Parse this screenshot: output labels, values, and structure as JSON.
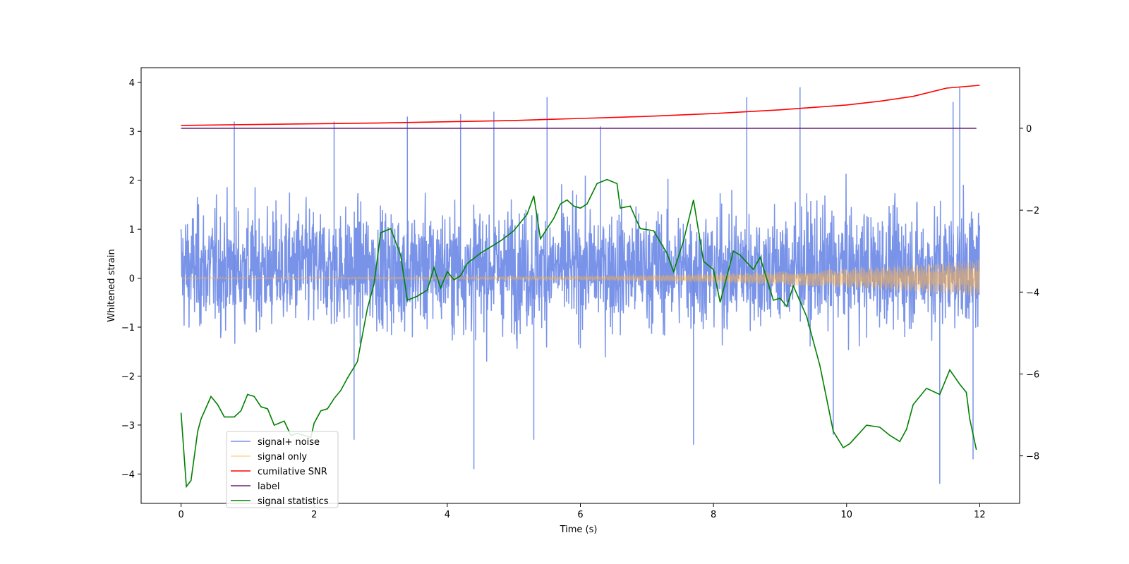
{
  "chart_data": {
    "type": "line",
    "title": "",
    "xlabel": "Time (s)",
    "ylabel": "Whitened strain",
    "xlim": [
      -0.6,
      12.6
    ],
    "ylim": [
      -4.6,
      4.3
    ],
    "y2lim": [
      -9.16,
      1.48
    ],
    "xticks": [
      0,
      2,
      4,
      6,
      8,
      10,
      12
    ],
    "yticks": [
      4,
      3,
      2,
      1,
      0,
      -1,
      -2,
      -3,
      -4
    ],
    "y2ticks": [
      0,
      -2,
      -4,
      -6,
      -8
    ],
    "tick_labels": {
      "x": [
        "0",
        "2",
        "4",
        "6",
        "8",
        "10",
        "12"
      ],
      "y": [
        "4",
        "3",
        "2",
        "1",
        "0",
        "−1",
        "−2",
        "−3",
        "−4"
      ],
      "y2": [
        "0",
        "−2",
        "−4",
        "−6",
        "−8"
      ]
    },
    "grid": false,
    "legend_position": "lower-left",
    "legend": [
      "signal+ noise",
      "signal only",
      "cumilative SNR",
      "label",
      "signal statistics"
    ],
    "series": [
      {
        "name": "signal+ noise",
        "axis": "left",
        "color": "#6a87e6",
        "kind": "noise",
        "t_range": [
          0,
          12
        ],
        "typical_amplitude": [
          -1.5,
          2.2
        ],
        "peaks": [
          {
            "t": 0.8,
            "v": 3.2
          },
          {
            "t": 2.3,
            "v": 3.2
          },
          {
            "t": 3.4,
            "v": 3.3
          },
          {
            "t": 4.2,
            "v": 3.35
          },
          {
            "t": 4.7,
            "v": 3.4
          },
          {
            "t": 5.5,
            "v": 3.7
          },
          {
            "t": 6.3,
            "v": 3.1
          },
          {
            "t": 8.5,
            "v": 3.7
          },
          {
            "t": 9.3,
            "v": 3.9
          },
          {
            "t": 11.7,
            "v": 3.9
          },
          {
            "t": 11.6,
            "v": 3.6
          },
          {
            "t": 2.6,
            "v": -3.3
          },
          {
            "t": 4.4,
            "v": -3.9
          },
          {
            "t": 5.3,
            "v": -3.3
          },
          {
            "t": 7.7,
            "v": -3.4
          },
          {
            "t": 9.8,
            "v": -3.2
          },
          {
            "t": 11.4,
            "v": -4.2
          },
          {
            "t": 11.9,
            "v": -3.7
          }
        ]
      },
      {
        "name": "signal only",
        "axis": "left",
        "color": "#ffb347",
        "kind": "chirp",
        "t_range": [
          0,
          12
        ],
        "amplitude_start": 0.02,
        "amplitude_end": 0.38
      },
      {
        "name": "cumilative SNR",
        "axis": "right",
        "color": "#ff0000",
        "x": [
          0,
          1,
          2,
          3,
          4,
          5,
          6,
          7,
          8,
          9,
          10,
          10.5,
          11,
          11.5,
          12
        ],
        "values": [
          0.07,
          0.09,
          0.11,
          0.13,
          0.16,
          0.19,
          0.24,
          0.29,
          0.36,
          0.45,
          0.57,
          0.66,
          0.78,
          0.98,
          1.05
        ]
      },
      {
        "name": "label",
        "axis": "right",
        "color": "#6b1f7a",
        "x": [
          0,
          11.95
        ],
        "values": [
          0,
          0
        ]
      },
      {
        "name": "signal statistics",
        "axis": "right",
        "color": "#008000",
        "x": [
          0,
          0.08,
          0.15,
          0.25,
          0.3,
          0.45,
          0.55,
          0.65,
          0.8,
          0.9,
          1.0,
          1.1,
          1.2,
          1.3,
          1.4,
          1.55,
          1.65,
          1.75,
          1.85,
          1.95,
          2.0,
          2.1,
          2.2,
          2.3,
          2.4,
          2.5,
          2.65,
          2.8,
          2.9,
          3.0,
          3.15,
          3.3,
          3.4,
          3.55,
          3.7,
          3.8,
          3.9,
          4.0,
          4.1,
          4.2,
          4.3,
          4.5,
          4.6,
          4.8,
          5.0,
          5.2,
          5.3,
          5.4,
          5.5,
          5.6,
          5.7,
          5.8,
          5.9,
          6.0,
          6.1,
          6.25,
          6.4,
          6.55,
          6.6,
          6.75,
          6.9,
          7.1,
          7.3,
          7.4,
          7.55,
          7.7,
          7.85,
          8.0,
          8.1,
          8.3,
          8.4,
          8.6,
          8.7,
          8.9,
          9.0,
          9.1,
          9.2,
          9.4,
          9.6,
          9.8,
          9.95,
          10.05,
          10.3,
          10.5,
          10.65,
          10.8,
          10.9,
          11.0,
          11.2,
          11.4,
          11.55,
          11.7,
          11.8,
          11.85,
          11.95
        ],
        "values": [
          -6.95,
          -8.75,
          -8.6,
          -7.4,
          -7.1,
          -6.55,
          -6.75,
          -7.05,
          -7.05,
          -6.9,
          -6.5,
          -6.55,
          -6.8,
          -6.85,
          -7.25,
          -7.15,
          -7.5,
          -7.45,
          -7.5,
          -7.55,
          -7.2,
          -6.9,
          -6.85,
          -6.6,
          -6.4,
          -6.1,
          -5.7,
          -4.4,
          -3.8,
          -2.55,
          -2.45,
          -3.1,
          -4.2,
          -4.1,
          -3.95,
          -3.4,
          -3.9,
          -3.5,
          -3.7,
          -3.6,
          -3.3,
          -3.05,
          -2.95,
          -2.75,
          -2.5,
          -2.1,
          -1.65,
          -2.7,
          -2.45,
          -2.2,
          -1.85,
          -1.75,
          -1.9,
          -1.95,
          -1.85,
          -1.35,
          -1.25,
          -1.35,
          -1.95,
          -1.9,
          -2.45,
          -2.5,
          -3.05,
          -3.5,
          -2.75,
          -1.75,
          -3.25,
          -3.45,
          -4.25,
          -3.0,
          -3.1,
          -3.45,
          -3.15,
          -4.2,
          -4.15,
          -4.35,
          -3.85,
          -4.6,
          -5.8,
          -7.4,
          -7.8,
          -7.7,
          -7.25,
          -7.3,
          -7.5,
          -7.65,
          -7.35,
          -6.75,
          -6.35,
          -6.5,
          -5.9,
          -6.25,
          -6.45,
          -7.1,
          -7.85
        ]
      }
    ]
  }
}
